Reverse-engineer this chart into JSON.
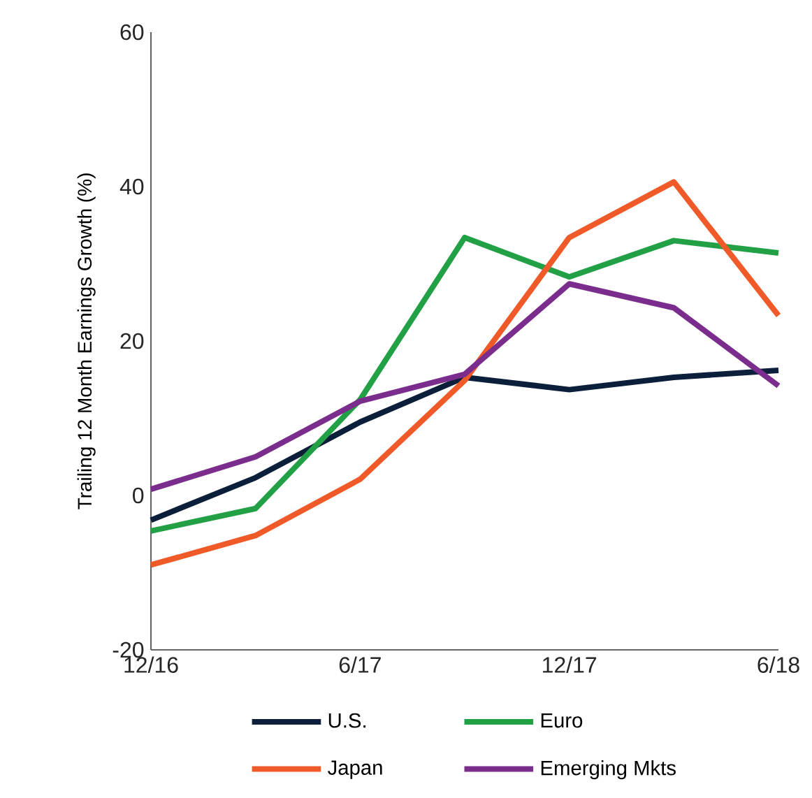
{
  "chart_data": {
    "type": "line",
    "ylabel": "Trailing 12 Month Earnings Growth (%)",
    "categories": [
      "12/16",
      null,
      "6/17",
      null,
      "12/17",
      null,
      "6/18"
    ],
    "series": [
      {
        "name": "U.S.",
        "color": "#0b1f3a",
        "values": [
          -3.2,
          2.3,
          9.5,
          15.3,
          13.7,
          15.3,
          16.2
        ]
      },
      {
        "name": "Euro",
        "color": "#22a045",
        "values": [
          -4.6,
          -1.7,
          12.4,
          33.4,
          28.3,
          33.0,
          31.4
        ]
      },
      {
        "name": "Japan",
        "color": "#f05a28",
        "values": [
          -9.0,
          -5.2,
          2.1,
          14.9,
          33.4,
          40.6,
          23.3
        ]
      },
      {
        "name": "Emerging Mkts",
        "color": "#7b2d8e",
        "values": [
          0.8,
          5.0,
          12.2,
          15.7,
          27.4,
          24.3,
          14.2
        ]
      }
    ],
    "ylim": [
      -20,
      60
    ],
    "yticks": [
      -20,
      0,
      20,
      40,
      60
    ],
    "grid": false,
    "legend": "bottom",
    "marker": "none",
    "line_style": "solid"
  }
}
